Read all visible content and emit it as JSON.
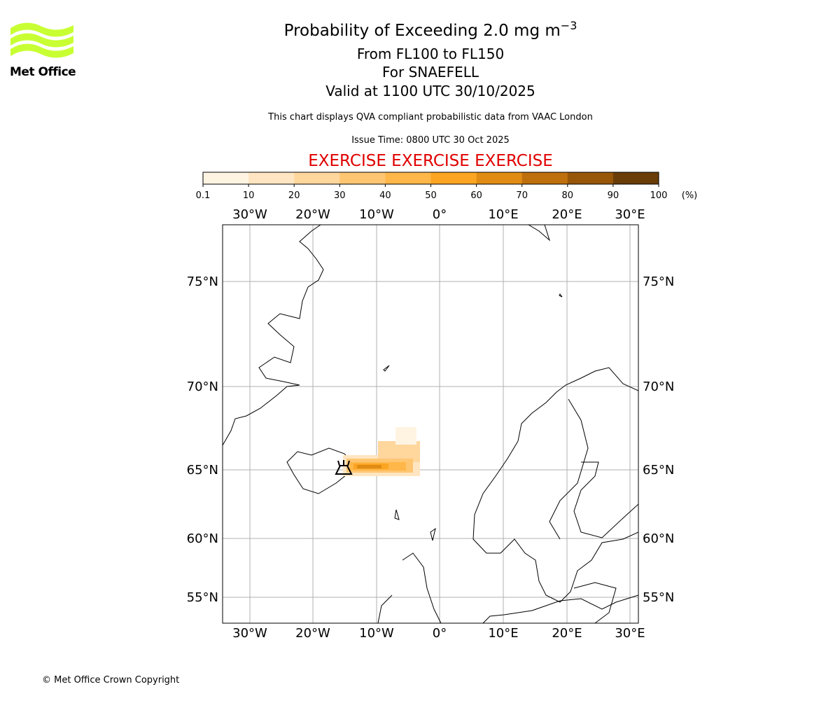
{
  "logo": {
    "text": "Met Office"
  },
  "header": {
    "title": "Probability of Exceeding 2.0 mg m",
    "title_superscript": "−3",
    "level": "From FL100 to FL150",
    "volcano": "For SNAEFELL",
    "valid": "Valid at 1100 UTC 30/10/2025",
    "note": "This chart displays QVA compliant probabilistic data from VAAC London",
    "issue": "Issue Time: 0800 UTC 30 Oct 2025",
    "exercise": "EXERCISE EXERCISE EXERCISE"
  },
  "colorbar": {
    "ticks": [
      0.1,
      10,
      20,
      30,
      40,
      50,
      60,
      70,
      80,
      90,
      100
    ],
    "unit": "(%)",
    "colors": [
      "#fff4e2",
      "#ffe5c1",
      "#ffd69c",
      "#ffc672",
      "#ffb749",
      "#fba523",
      "#e08c14",
      "#bf700c",
      "#985608",
      "#6a3d08"
    ]
  },
  "map": {
    "lon_labels": [
      "30°W",
      "20°W",
      "10°W",
      "0°",
      "10°E",
      "20°E",
      "30°E"
    ],
    "lat_labels": [
      "75°N",
      "70°N",
      "65°N",
      "60°N",
      "55°N"
    ]
  },
  "footer": {
    "copyright": "© Met Office Crown Copyright"
  }
}
